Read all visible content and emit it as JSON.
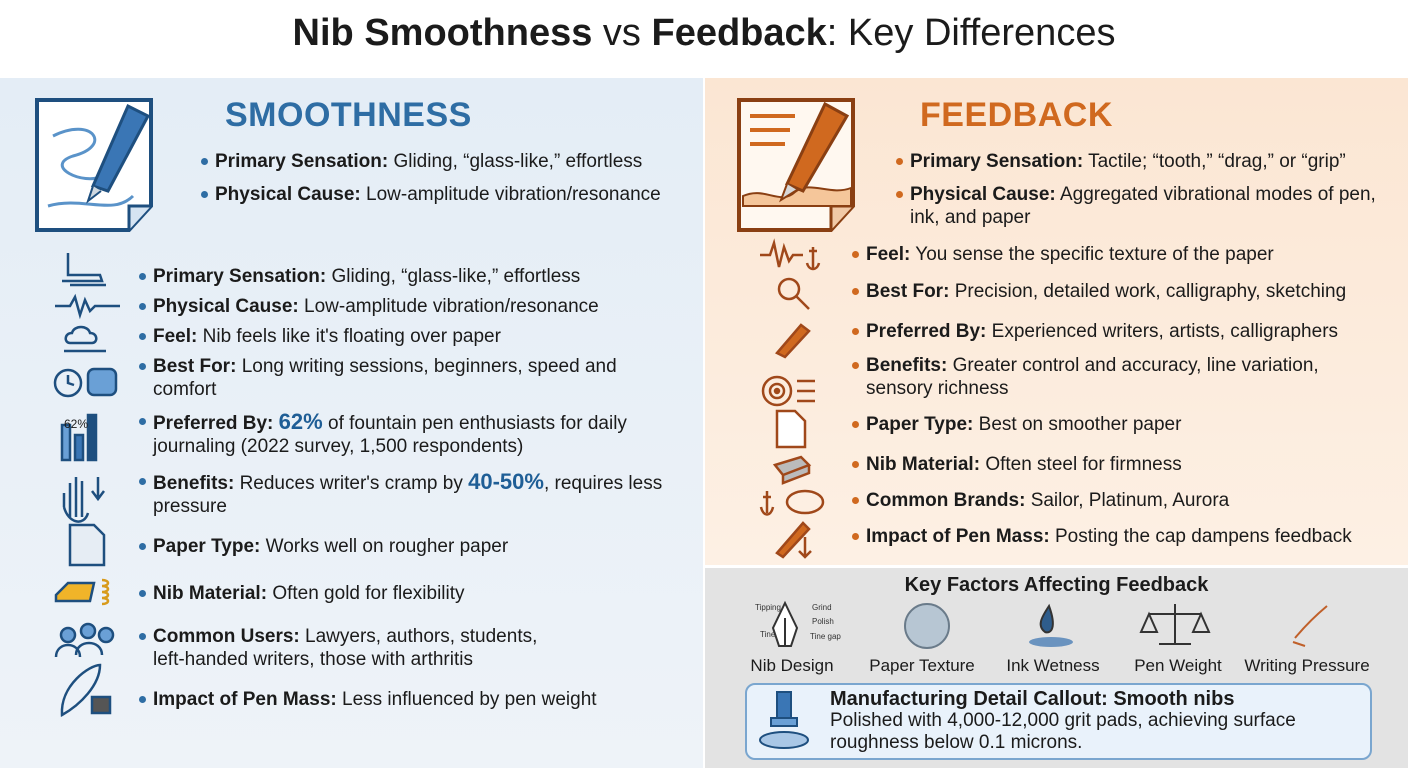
{
  "header": {
    "title": {
      "bold1": "Nib Smoothness",
      "mid": "vs",
      "bold2": "Feedback",
      "end": ": Key Differences"
    }
  },
  "smoothness": {
    "heading": "SMOOTHNESS",
    "summary": [
      {
        "label": "Primary Sensation:",
        "text": "Gliding, “glass-like,” effortless"
      },
      {
        "label": "Physical Cause:",
        "text": "Low-amplitude vibration/resonance"
      }
    ],
    "items": [
      {
        "label": "Primary Sensation:",
        "text": "Gliding, “glass-like,” effortless"
      },
      {
        "label": "Physical Cause:",
        "text": "Low-amplitude vibration/resonance"
      },
      {
        "label": "Feel:",
        "text": "Nib feels like it's floating over paper"
      },
      {
        "label": "Best For:",
        "text": "Long writing sessions, beginners, speed and comfort"
      },
      {
        "label": "Preferred By:",
        "highlight": "62%",
        "after": "of fountain pen enthusiasts for daily journaling (2022 survey, 1,500 respondents)",
        "icon_text": "62%"
      },
      {
        "label": "Benefits:",
        "before": "Reduces writer's cramp by",
        "highlight": "40-50%",
        "after": ", requires less pressure"
      },
      {
        "label": "Paper Type:",
        "text": "Works well on rougher paper"
      },
      {
        "label": "Nib Material:",
        "text": "Often gold for flexibility"
      },
      {
        "label": "Common Users:",
        "text": "Lawyers, authors, students, left-handed writers, those with arthritis"
      },
      {
        "label": "Impact of Pen Mass:",
        "text": "Less influenced by pen weight"
      }
    ]
  },
  "feedback": {
    "heading": "FEEDBACK",
    "summary": [
      {
        "label": "Primary Sensation:",
        "text": "Tactile; “tooth,” “drag,” or “grip”"
      },
      {
        "label": "Physical Cause:",
        "text": "Aggregated vibrational modes of pen, ink, and paper"
      }
    ],
    "items": [
      {
        "label": "Feel:",
        "text": "You sense the specific texture of the paper"
      },
      {
        "label": "Best For:",
        "text": "Precision, detailed work, calligraphy, sketching"
      },
      {
        "label": "Preferred By:",
        "text": "Experienced writers, artists, calligraphers"
      },
      {
        "label": "Benefits:",
        "text": "Greater control and accuracy, line variation, sensory richness"
      },
      {
        "label": "Paper Type:",
        "text": "Best on smoother paper"
      },
      {
        "label": "Nib Material:",
        "text": "Often steel for firmness"
      },
      {
        "label": "Common Brands:",
        "text": "Sailor, Platinum, Aurora"
      },
      {
        "label": "Impact of Pen Mass:",
        "text": "Posting the cap dampens feedback"
      }
    ]
  },
  "key_factors": {
    "title": "Key Factors Affecting Feedback",
    "factors": [
      "Nib Design",
      "Paper Texture",
      "Ink Wetness",
      "Pen Weight",
      "Writing Pressure"
    ],
    "nib_parts": [
      "Tipping",
      "Grind",
      "Polish",
      "Tine",
      "Tine gap"
    ]
  },
  "callout": {
    "title": "Manufacturing Detail Callout: Smooth nibs",
    "text": "Polished with 4,000-12,000 grit pads, achieving surface roughness below 0.1 microns."
  }
}
